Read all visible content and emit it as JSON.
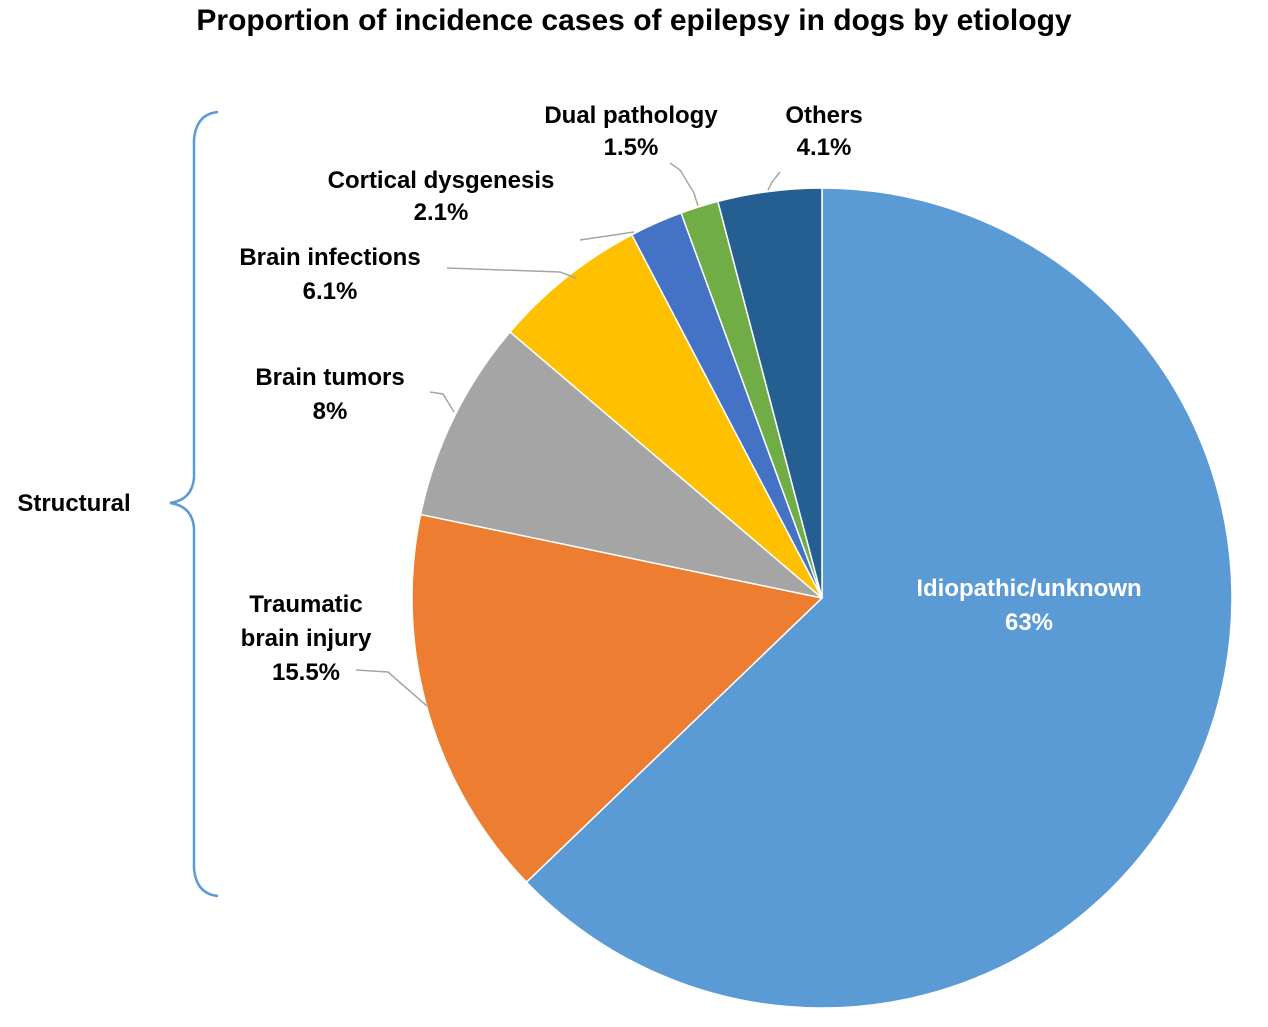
{
  "chart_data": {
    "type": "pie",
    "title": "Proportion of incidence cases of epilepsy in dogs by etiology",
    "slices": [
      {
        "label": "Idiopathic/unknown",
        "value": 63,
        "value_label": "63%",
        "color": "#5B9BD5"
      },
      {
        "label": "Traumatic brain injury",
        "label_lines": [
          "Traumatic",
          "brain injury"
        ],
        "value": 15.5,
        "value_label": "15.5%",
        "color": "#ED7D31"
      },
      {
        "label": "Brain tumors",
        "value": 8,
        "value_label": "8%",
        "color": "#A5A5A5"
      },
      {
        "label": "Brain infections",
        "value": 6.1,
        "value_label": "6.1%",
        "color": "#FFC000"
      },
      {
        "label": "Cortical dysgenesis",
        "value": 2.1,
        "value_label": "2.1%",
        "color": "#4472C4"
      },
      {
        "label": "Dual pathology",
        "value": 1.5,
        "value_label": "1.5%",
        "color": "#70AD47"
      },
      {
        "label": "Others",
        "value": 4.1,
        "value_label": "4.1%",
        "color": "#255E91"
      }
    ],
    "group_bracket": {
      "label": "Structural",
      "color": "#5B9BD5"
    }
  }
}
